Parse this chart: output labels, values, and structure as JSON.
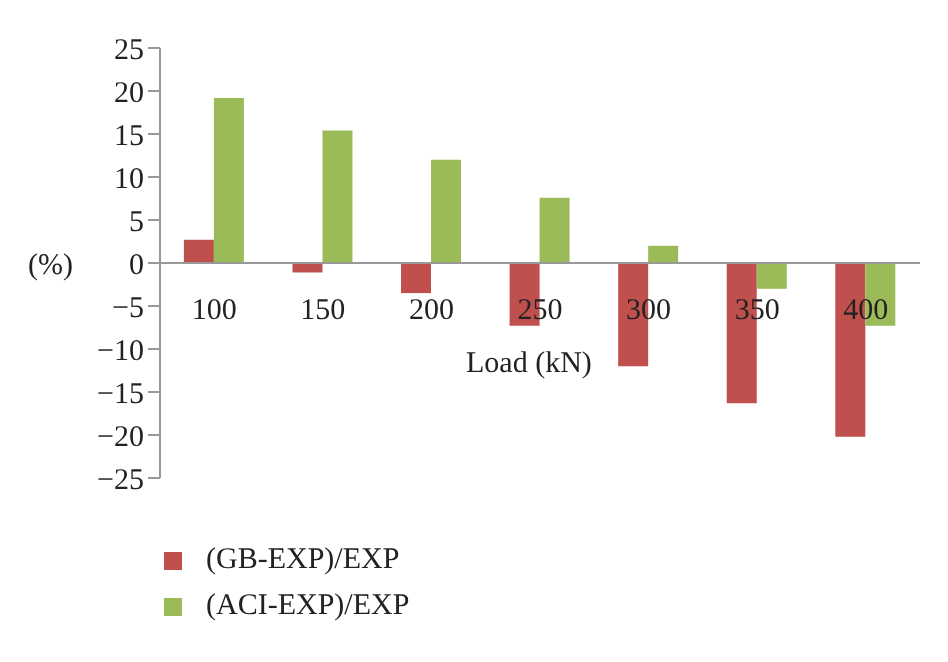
{
  "chart_data": {
    "type": "bar",
    "xlabel": "Load (kN)",
    "ylabel": "(%)",
    "categories": [
      "100",
      "150",
      "200",
      "250",
      "300",
      "350",
      "400"
    ],
    "series": [
      {
        "name": "(GB-EXP)/EXP",
        "color": "#c0504d",
        "values": [
          2.7,
          -1.1,
          -3.5,
          -7.3,
          -12.0,
          -16.3,
          -20.2
        ]
      },
      {
        "name": "(ACI-EXP)/EXP",
        "color": "#9bbb59",
        "values": [
          19.2,
          15.4,
          12.0,
          7.6,
          2.0,
          -3.0,
          -7.3
        ]
      }
    ],
    "ylim": [
      -25,
      25
    ],
    "yticks": [
      -25,
      -20,
      -15,
      -10,
      -5,
      0,
      5,
      10,
      15,
      20,
      25
    ],
    "legend": "bottom left"
  }
}
